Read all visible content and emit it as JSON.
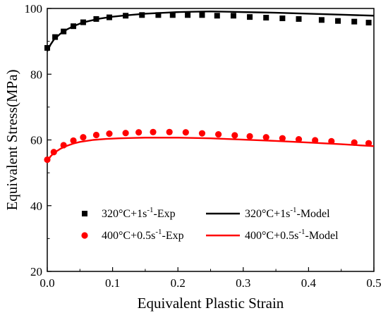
{
  "chart_data": {
    "type": "line",
    "xlabel": "Equivalent Plastic Strain",
    "ylabel": "Equivalent Stress(MPa)",
    "xlim": [
      0.0,
      0.5
    ],
    "ylim": [
      20,
      100
    ],
    "xticks": [
      "0.0",
      "0.1",
      "0.2",
      "0.3",
      "0.4",
      "0.5"
    ],
    "yticks": [
      "20",
      "40",
      "60",
      "80",
      "100"
    ],
    "grid": false,
    "legend_position": "bottom-center",
    "series": [
      {
        "name_parts": [
          "320°C+1s",
          "-1",
          "-Exp"
        ],
        "kind": "scatter",
        "marker": "square",
        "color": "#000000",
        "x": [
          0.0,
          0.012,
          0.025,
          0.04,
          0.055,
          0.075,
          0.095,
          0.12,
          0.145,
          0.17,
          0.192,
          0.215,
          0.237,
          0.26,
          0.285,
          0.31,
          0.335,
          0.36,
          0.385,
          0.42,
          0.445,
          0.47,
          0.492
        ],
        "y": [
          88.0,
          91.3,
          93.0,
          94.6,
          95.8,
          96.8,
          97.3,
          97.8,
          98.0,
          98.0,
          98.0,
          98.0,
          98.0,
          97.8,
          97.8,
          97.4,
          97.2,
          97.0,
          96.8,
          96.5,
          96.2,
          96.0,
          95.7
        ]
      },
      {
        "name_parts": [
          "320°C+1s",
          "-1",
          "-Model"
        ],
        "kind": "line",
        "color": "#000000",
        "x": [
          0.0,
          0.005,
          0.01,
          0.02,
          0.03,
          0.04,
          0.05,
          0.06,
          0.08,
          0.1,
          0.12,
          0.15,
          0.18,
          0.2,
          0.22,
          0.25,
          0.28,
          0.3,
          0.35,
          0.4,
          0.45,
          0.5
        ],
        "y": [
          87.0,
          89.0,
          90.5,
          92.3,
          93.6,
          94.6,
          95.4,
          96.0,
          96.9,
          97.5,
          97.9,
          98.4,
          98.7,
          98.9,
          99.0,
          99.1,
          99.0,
          98.9,
          98.7,
          98.4,
          98.1,
          97.8
        ]
      },
      {
        "name_parts": [
          "400°C+0.5s",
          "-1",
          "-Exp"
        ],
        "kind": "scatter",
        "marker": "circle",
        "color": "#ff0000",
        "x": [
          0.0,
          0.01,
          0.025,
          0.04,
          0.055,
          0.075,
          0.095,
          0.12,
          0.14,
          0.162,
          0.187,
          0.212,
          0.237,
          0.262,
          0.287,
          0.31,
          0.335,
          0.36,
          0.385,
          0.41,
          0.435,
          0.47,
          0.492
        ],
        "y": [
          54.0,
          56.3,
          58.4,
          59.8,
          60.8,
          61.5,
          61.9,
          62.1,
          62.3,
          62.4,
          62.4,
          62.3,
          62.0,
          61.7,
          61.4,
          61.1,
          60.8,
          60.5,
          60.2,
          59.9,
          59.6,
          59.2,
          59.0
        ]
      },
      {
        "name_parts": [
          "400°C+0.5s",
          "-1",
          "-Model"
        ],
        "kind": "line",
        "color": "#ff0000",
        "x": [
          0.0,
          0.005,
          0.01,
          0.02,
          0.03,
          0.04,
          0.05,
          0.07,
          0.09,
          0.11,
          0.13,
          0.15,
          0.18,
          0.2,
          0.25,
          0.3,
          0.35,
          0.4,
          0.45,
          0.5
        ],
        "y": [
          53.5,
          55.0,
          56.0,
          57.3,
          58.2,
          58.9,
          59.4,
          60.0,
          60.3,
          60.5,
          60.6,
          60.7,
          60.7,
          60.7,
          60.5,
          60.1,
          59.7,
          59.2,
          58.7,
          58.1
        ]
      }
    ]
  }
}
